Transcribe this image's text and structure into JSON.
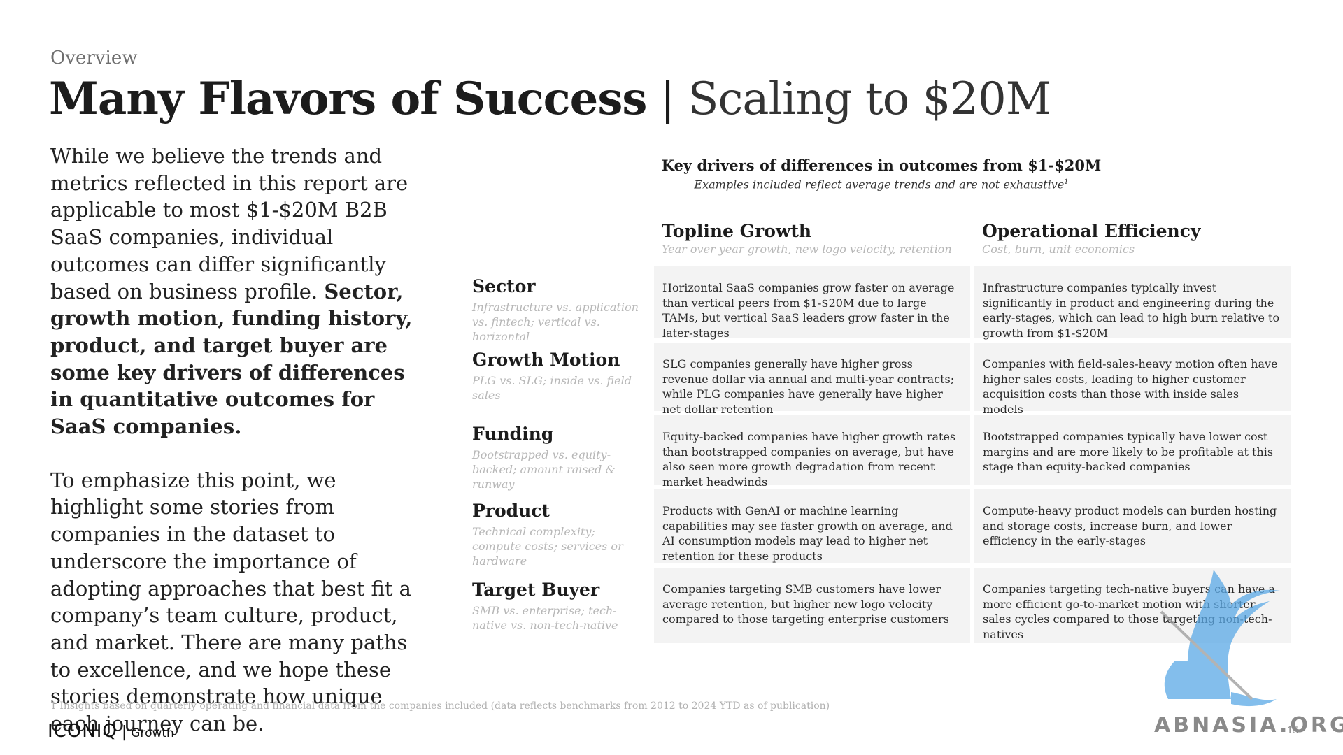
{
  "header": {
    "eyebrow": "Overview",
    "title_main": "Many Flavors of Success",
    "title_sep": "|",
    "title_sub": "Scaling to $20M"
  },
  "intro": {
    "para1_normal": "While we believe the trends and metrics reflected in this report are applicable to most $1-$20M B2B SaaS companies, individual outcomes can differ significantly based on business profile.",
    "para1_bold": "Sector, growth motion, funding history, product, and target buyer are some key drivers of differences in quantitative outcomes for SaaS companies.",
    "para2": "To emphasize this point, we highlight some stories from companies in the dataset to underscore the importance of adopting approaches that best fit a company’s team culture, product, and market. There are many paths to excellence, and we hope these stories demonstrate how unique each journey can be."
  },
  "table": {
    "title": "Key drivers of differences in outcomes from $1-$20M",
    "subtitle": "Examples included reflect average trends and are not exhaustive",
    "subtitle_sup": "1",
    "columns": [
      {
        "heading": "Topline Growth",
        "sub": "Year over year growth, new logo velocity, retention"
      },
      {
        "heading": "Operational Efficiency",
        "sub": "Cost, burn, unit economics"
      }
    ],
    "rows": [
      {
        "label": "Sector",
        "sub": "Infrastructure vs. application vs. fintech; vertical vs. horizontal",
        "growth": "Horizontal SaaS companies grow faster on average than vertical peers from $1-$20M due to large TAMs, but vertical SaaS leaders grow faster in the later-stages",
        "efficiency": "Infrastructure companies typically invest significantly in product and engineering during the early-stages, which can lead to high burn relative to growth from $1-$20M"
      },
      {
        "label": "Growth Motion",
        "sub": "PLG vs. SLG; inside vs. field sales",
        "growth": "SLG companies generally have higher gross revenue dollar via annual and multi-year contracts; while PLG companies have generally have higher net dollar retention",
        "efficiency": "Companies with field-sales-heavy motion often have higher sales costs, leading to higher customer acquisition costs than those with inside sales models"
      },
      {
        "label": "Funding",
        "sub": "Bootstrapped vs. equity-backed; amount raised & runway",
        "growth": "Equity-backed companies have higher growth rates than bootstrapped companies on average, but have also seen more growth degradation from recent market headwinds",
        "efficiency": "Bootstrapped companies typically have lower cost margins and are more likely to be profitable at this stage than equity-backed companies"
      },
      {
        "label": "Product",
        "sub": "Technical complexity; compute costs; services or hardware",
        "growth": "Products with GenAI or machine learning capabilities may see faster growth on average, and AI consumption models may lead to higher net retention for these products",
        "efficiency": "Compute-heavy product models can burden hosting and storage costs, increase burn, and lower efficiency in the early-stages"
      },
      {
        "label": "Target Buyer",
        "sub": "SMB vs. enterprise; tech-native vs. non-tech-native",
        "growth": "Companies targeting SMB customers have lower average retention, but higher new logo velocity compared to those targeting enterprise customers",
        "efficiency": "Companies targeting tech-native buyers can have a more efficient go-to-market motion with shorter sales cycles compared to those targeting non-tech-natives"
      }
    ]
  },
  "footer": {
    "footnote": "1 Insights based on quarterly operating and financial data from the companies included (data reflects benchmarks from 2012 to 2024 YTD as of publication)",
    "brand": "ICONIQ",
    "brand_sep": "|",
    "brand_unit": "Growth",
    "page_number": "15"
  },
  "watermark": {
    "text": "ABNASIA.ORG",
    "icon": "griffin-logo-icon",
    "color": "#5aa9e6"
  }
}
